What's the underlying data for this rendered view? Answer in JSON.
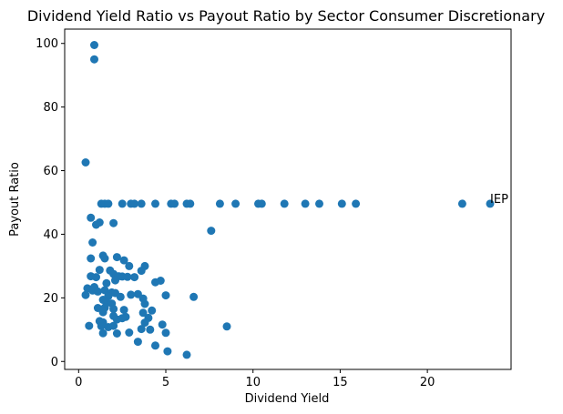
{
  "chart_data": {
    "type": "scatter",
    "title": "Dividend Yield Ratio vs Payout Ratio by Sector Consumer Discretionary",
    "xlabel": "Dividend Yield",
    "ylabel": "Payout Ratio",
    "xlim": [
      -0.8,
      24.8
    ],
    "ylim": [
      -2.5,
      104.5
    ],
    "xticks": [
      0,
      5,
      10,
      15,
      20
    ],
    "yticks": [
      0,
      20,
      40,
      60,
      80,
      100
    ],
    "grid": false,
    "marker_color": "#1f77b4",
    "annotations": [
      {
        "text": "IEP",
        "x": 23.6,
        "y": 49.5
      }
    ],
    "points": [
      [
        0.9,
        99.5
      ],
      [
        0.9,
        95.0
      ],
      [
        0.4,
        62.6
      ],
      [
        1.3,
        49.6
      ],
      [
        1.5,
        49.6
      ],
      [
        1.7,
        49.6
      ],
      [
        2.5,
        49.6
      ],
      [
        3.0,
        49.6
      ],
      [
        3.2,
        49.6
      ],
      [
        3.6,
        49.6
      ],
      [
        4.4,
        49.6
      ],
      [
        5.3,
        49.6
      ],
      [
        5.5,
        49.6
      ],
      [
        6.2,
        49.6
      ],
      [
        6.4,
        49.6
      ],
      [
        8.1,
        49.6
      ],
      [
        9.0,
        49.6
      ],
      [
        10.3,
        49.6
      ],
      [
        10.5,
        49.6
      ],
      [
        11.8,
        49.6
      ],
      [
        13.0,
        49.6
      ],
      [
        13.8,
        49.6
      ],
      [
        15.1,
        49.6
      ],
      [
        15.9,
        49.6
      ],
      [
        22.0,
        49.6
      ],
      [
        23.6,
        49.6
      ],
      [
        0.7,
        45.2
      ],
      [
        1.0,
        43.0
      ],
      [
        1.2,
        43.7
      ],
      [
        2.0,
        43.5
      ],
      [
        7.6,
        41.1
      ],
      [
        0.8,
        37.4
      ],
      [
        1.4,
        33.3
      ],
      [
        1.5,
        32.4
      ],
      [
        0.7,
        32.4
      ],
      [
        2.2,
        32.8
      ],
      [
        2.6,
        31.8
      ],
      [
        2.9,
        30.0
      ],
      [
        3.8,
        30.0
      ],
      [
        3.6,
        28.5
      ],
      [
        1.2,
        28.8
      ],
      [
        1.8,
        28.6
      ],
      [
        2.0,
        27.5
      ],
      [
        0.7,
        26.8
      ],
      [
        1.0,
        26.5
      ],
      [
        2.3,
        26.8
      ],
      [
        2.5,
        26.7
      ],
      [
        2.8,
        26.6
      ],
      [
        3.2,
        26.5
      ],
      [
        2.1,
        25.5
      ],
      [
        4.7,
        25.4
      ],
      [
        4.4,
        24.9
      ],
      [
        1.6,
        24.6
      ],
      [
        0.5,
        23.0
      ],
      [
        0.9,
        23.4
      ],
      [
        0.8,
        22.3
      ],
      [
        1.1,
        22.0
      ],
      [
        1.5,
        22.4
      ],
      [
        1.9,
        21.7
      ],
      [
        2.1,
        21.5
      ],
      [
        3.0,
        21.0
      ],
      [
        3.4,
        21.2
      ],
      [
        0.4,
        20.9
      ],
      [
        1.7,
        20.5
      ],
      [
        2.4,
        20.3
      ],
      [
        5.0,
        20.8
      ],
      [
        6.6,
        20.3
      ],
      [
        3.7,
        19.8
      ],
      [
        1.4,
        19.4
      ],
      [
        1.6,
        18.5
      ],
      [
        1.9,
        18.2
      ],
      [
        3.8,
        18.1
      ],
      [
        1.1,
        16.8
      ],
      [
        1.5,
        16.9
      ],
      [
        2.0,
        16.5
      ],
      [
        2.6,
        16.2
      ],
      [
        4.2,
        16.0
      ],
      [
        1.4,
        15.5
      ],
      [
        2.0,
        14.3
      ],
      [
        2.7,
        14.0
      ],
      [
        3.7,
        15.3
      ],
      [
        4.0,
        13.7
      ],
      [
        1.2,
        12.7
      ],
      [
        1.4,
        12.3
      ],
      [
        2.2,
        13.2
      ],
      [
        2.5,
        13.6
      ],
      [
        3.8,
        12.2
      ],
      [
        4.8,
        11.6
      ],
      [
        0.6,
        11.2
      ],
      [
        1.3,
        11.1
      ],
      [
        1.7,
        10.8
      ],
      [
        2.0,
        11.2
      ],
      [
        8.5,
        11.0
      ],
      [
        1.4,
        8.9
      ],
      [
        2.2,
        8.8
      ],
      [
        2.9,
        9.1
      ],
      [
        3.6,
        10.2
      ],
      [
        4.1,
        10.0
      ],
      [
        5.0,
        9.0
      ],
      [
        3.4,
        6.2
      ],
      [
        4.4,
        5.0
      ],
      [
        5.1,
        3.2
      ],
      [
        6.2,
        2.1
      ]
    ]
  }
}
